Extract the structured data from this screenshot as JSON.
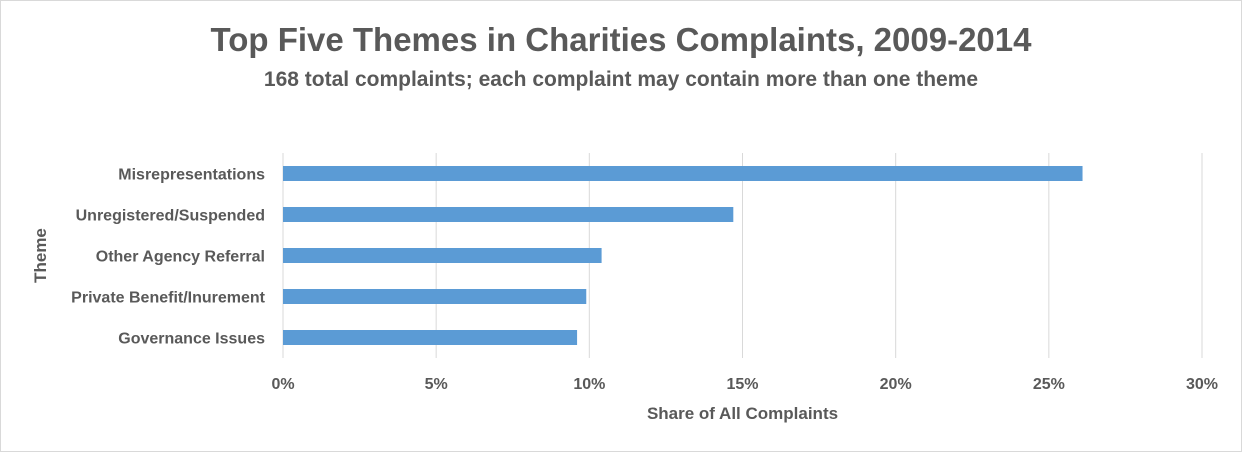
{
  "chart_data": {
    "type": "bar",
    "orientation": "horizontal",
    "title": "Top Five Themes in Charities Complaints, 2009-2014",
    "subtitle": "168 total complaints; each complaint may contain more than one theme",
    "categories": [
      "Misrepresentations",
      "Unregistered/Suspended",
      "Other Agency Referral",
      "Private Benefit/Inurement",
      "Governance Issues"
    ],
    "values": [
      26.1,
      14.7,
      10.4,
      9.9,
      9.6
    ],
    "xlabel": "Share of All Complaints",
    "ylabel": "Theme",
    "xlim": [
      0,
      30
    ],
    "xticks": [
      0,
      5,
      10,
      15,
      20,
      25,
      30
    ],
    "xtick_labels": [
      "0%",
      "5%",
      "10%",
      "15%",
      "20%",
      "25%",
      "30%"
    ],
    "grid": "vertical",
    "legend": "none",
    "colors": {
      "bar": "#5b9bd5",
      "grid": "#d9d9d9",
      "text": "#595959"
    }
  }
}
